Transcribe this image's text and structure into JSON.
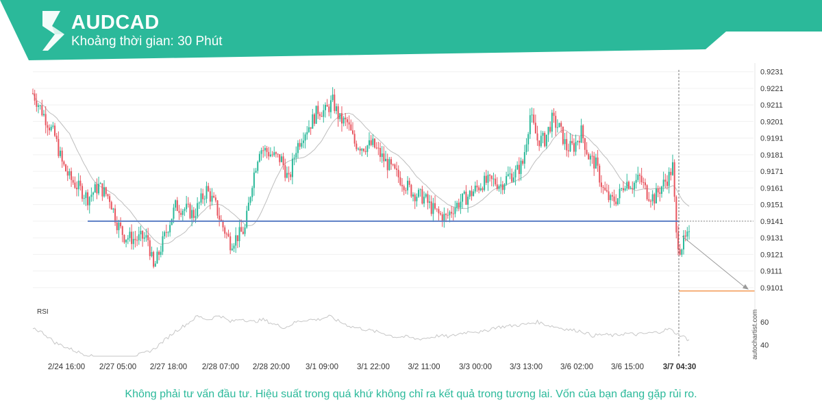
{
  "header": {
    "symbol": "AUDCAD",
    "timeframe": "Khoảng thời gian: 30 Phút",
    "accent_color": "#2bb99a",
    "logo_icon": "autochartist-logo-icon"
  },
  "disclaimer": "Không phải tư vấn đầu tư. Hiệu suất trong quá khứ không chỉ ra kết quả trong tương lai. Vốn của bạn đang gặp rủi ro.",
  "watermark": "autochartist.com",
  "chart_data": {
    "type": "candlestick",
    "symbol": "AUDCAD",
    "y_ticks": [
      "0.9231",
      "0.9221",
      "0.9211",
      "0.9201",
      "0.9191",
      "0.9181",
      "0.9171",
      "0.9161",
      "0.9151",
      "0.9141",
      "0.9131",
      "0.9121",
      "0.9111",
      "0.9101"
    ],
    "ylim": [
      0.9096,
      0.9235
    ],
    "x_ticks": [
      "2/24 16:00",
      "2/27 05:00",
      "2/27 18:00",
      "2/28 07:00",
      "2/28 20:00",
      "3/1 09:00",
      "3/1 22:00",
      "3/2 11:00",
      "3/3 00:00",
      "3/3 13:00",
      "3/6 02:00",
      "3/6 15:00",
      "3/7 04:30"
    ],
    "current_time_label": "3/7 04:30",
    "support_level": 0.9141,
    "target_level": 0.9099,
    "colors": {
      "up": "#2bb99a",
      "down": "#e8555f",
      "support": "#5b7ec4",
      "target": "#f39a54",
      "ma": "#bdbdbd"
    },
    "waypoints": [
      [
        0,
        0.9218
      ],
      [
        6,
        0.9205
      ],
      [
        12,
        0.9192
      ],
      [
        16,
        0.9176
      ],
      [
        20,
        0.9167
      ],
      [
        26,
        0.916
      ],
      [
        30,
        0.9155
      ],
      [
        36,
        0.9162
      ],
      [
        42,
        0.9155
      ],
      [
        46,
        0.914
      ],
      [
        50,
        0.9132
      ],
      [
        56,
        0.913
      ],
      [
        60,
        0.9131
      ],
      [
        63,
        0.913
      ],
      [
        66,
        0.9112
      ],
      [
        70,
        0.9125
      ],
      [
        74,
        0.9138
      ],
      [
        78,
        0.915
      ],
      [
        84,
        0.9148
      ],
      [
        88,
        0.9145
      ],
      [
        95,
        0.916
      ],
      [
        100,
        0.915
      ],
      [
        103,
        0.914
      ],
      [
        108,
        0.9128
      ],
      [
        112,
        0.9132
      ],
      [
        116,
        0.9136
      ],
      [
        120,
        0.9165
      ],
      [
        124,
        0.9185
      ],
      [
        128,
        0.9183
      ],
      [
        132,
        0.918
      ],
      [
        136,
        0.9178
      ],
      [
        140,
        0.9165
      ],
      [
        144,
        0.9185
      ],
      [
        148,
        0.9194
      ],
      [
        152,
        0.92
      ],
      [
        156,
        0.9208
      ],
      [
        160,
        0.9207
      ],
      [
        164,
        0.9213
      ],
      [
        168,
        0.9202
      ],
      [
        172,
        0.92
      ],
      [
        176,
        0.9188
      ],
      [
        180,
        0.9186
      ],
      [
        186,
        0.9187
      ],
      [
        192,
        0.9178
      ],
      [
        198,
        0.917
      ],
      [
        204,
        0.9163
      ],
      [
        208,
        0.9158
      ],
      [
        214,
        0.9155
      ],
      [
        218,
        0.9149
      ],
      [
        222,
        0.9145
      ],
      [
        226,
        0.9143
      ],
      [
        230,
        0.9149
      ],
      [
        234,
        0.9153
      ],
      [
        238,
        0.9156
      ],
      [
        242,
        0.916
      ],
      [
        246,
        0.9164
      ],
      [
        252,
        0.9165
      ],
      [
        256,
        0.9163
      ],
      [
        260,
        0.9168
      ],
      [
        264,
        0.917
      ],
      [
        268,
        0.9176
      ],
      [
        272,
        0.9205
      ],
      [
        276,
        0.919
      ],
      [
        280,
        0.919
      ],
      [
        284,
        0.9202
      ],
      [
        288,
        0.9197
      ],
      [
        292,
        0.9185
      ],
      [
        296,
        0.9186
      ],
      [
        300,
        0.9195
      ],
      [
        304,
        0.918
      ],
      [
        308,
        0.9175
      ],
      [
        312,
        0.916
      ],
      [
        316,
        0.9153
      ],
      [
        320,
        0.9155
      ],
      [
        324,
        0.9165
      ],
      [
        328,
        0.9163
      ],
      [
        332,
        0.9167
      ],
      [
        336,
        0.9158
      ],
      [
        340,
        0.9155
      ],
      [
        344,
        0.9162
      ],
      [
        348,
        0.9168
      ],
      [
        350,
        0.9174
      ],
      [
        352,
        0.9132
      ],
      [
        354,
        0.9125
      ],
      [
        358,
        0.9131
      ]
    ],
    "rsi": {
      "label": "RSI",
      "y_ticks": [
        "60",
        "40"
      ],
      "ylim": [
        30,
        75
      ],
      "waypoints": [
        [
          0,
          55
        ],
        [
          6,
          50
        ],
        [
          12,
          42
        ],
        [
          18,
          38
        ],
        [
          24,
          34
        ],
        [
          30,
          31
        ],
        [
          36,
          28
        ],
        [
          42,
          26
        ],
        [
          48,
          26
        ],
        [
          54,
          30
        ],
        [
          60,
          32
        ],
        [
          66,
          36
        ],
        [
          72,
          44
        ],
        [
          78,
          52
        ],
        [
          84,
          58
        ],
        [
          90,
          65
        ],
        [
          96,
          62
        ],
        [
          102,
          66
        ],
        [
          108,
          60
        ],
        [
          114,
          63
        ],
        [
          120,
          60
        ],
        [
          126,
          62
        ],
        [
          132,
          58
        ],
        [
          138,
          55
        ],
        [
          144,
          60
        ],
        [
          150,
          62
        ],
        [
          156,
          62
        ],
        [
          162,
          65
        ],
        [
          168,
          60
        ],
        [
          174,
          56
        ],
        [
          180,
          54
        ],
        [
          186,
          52
        ],
        [
          192,
          50
        ],
        [
          198,
          47
        ],
        [
          204,
          47
        ],
        [
          210,
          45
        ],
        [
          216,
          46
        ],
        [
          222,
          48
        ],
        [
          228,
          47
        ],
        [
          234,
          50
        ],
        [
          240,
          52
        ],
        [
          246,
          51
        ],
        [
          252,
          55
        ],
        [
          258,
          56
        ],
        [
          264,
          57
        ],
        [
          270,
          58
        ],
        [
          276,
          60
        ],
        [
          282,
          57
        ],
        [
          288,
          55
        ],
        [
          294,
          53
        ],
        [
          300,
          52
        ],
        [
          306,
          48
        ],
        [
          312,
          49
        ],
        [
          318,
          48
        ],
        [
          324,
          50
        ],
        [
          330,
          49
        ],
        [
          336,
          50
        ],
        [
          342,
          51
        ],
        [
          348,
          54
        ],
        [
          352,
          50
        ],
        [
          356,
          47
        ],
        [
          358,
          45
        ]
      ]
    }
  }
}
